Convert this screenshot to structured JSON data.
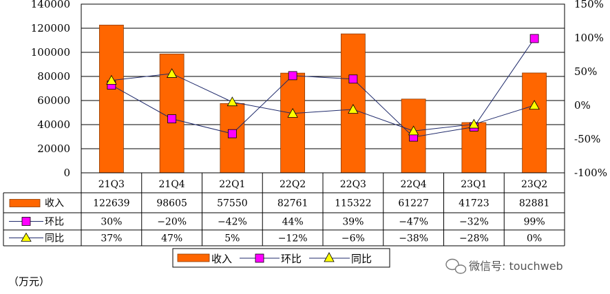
{
  "colors": {
    "bar": "#FF6600",
    "bar_stroke": "#8B3A00",
    "qoq_marker": "#FF00FF",
    "yoy_marker": "#FFFF00",
    "line": "#1F2A6B",
    "grid": "#000000"
  },
  "chart_data": {
    "type": "bar",
    "categories": [
      "21Q3",
      "21Q4",
      "22Q1",
      "22Q2",
      "22Q3",
      "22Q4",
      "23Q1",
      "23Q2"
    ],
    "y_left": {
      "min": 0,
      "max": 140000,
      "step": 20000,
      "ticks": [
        "0",
        "20000",
        "40000",
        "60000",
        "80000",
        "100000",
        "120000",
        "140000"
      ]
    },
    "y_right": {
      "min": -100,
      "max": 150,
      "step": 50,
      "ticks": [
        "-100%",
        "-50%",
        "0%",
        "50%",
        "100%",
        "150%"
      ]
    },
    "series": [
      {
        "name": "收入",
        "type": "bar",
        "axis": "left",
        "values": [
          122639,
          98605,
          57550,
          82761,
          115322,
          61227,
          41723,
          82881
        ],
        "labels": [
          "122639",
          "98605",
          "57550",
          "82761",
          "115322",
          "61227",
          "41723",
          "82881"
        ]
      },
      {
        "name": "环比",
        "type": "line",
        "axis": "right",
        "marker": "square",
        "values": [
          30,
          -20,
          -42,
          44,
          39,
          -47,
          -32,
          99
        ],
        "labels": [
          "30%",
          "−20%",
          "−42%",
          "44%",
          "39%",
          "−47%",
          "−32%",
          "99%"
        ]
      },
      {
        "name": "同比",
        "type": "line",
        "axis": "right",
        "marker": "triangle",
        "values": [
          37,
          47,
          5,
          -12,
          -6,
          -38,
          -28,
          0
        ],
        "labels": [
          "37%",
          "47%",
          "5%",
          "−12%",
          "−6%",
          "−38%",
          "−28%",
          "0%"
        ]
      }
    ],
    "legend": [
      "收入",
      "环比",
      "同比"
    ],
    "unit": "（万元）"
  },
  "watermark": {
    "text": "微信号: touchweb",
    "icon": "wechat-icon"
  }
}
